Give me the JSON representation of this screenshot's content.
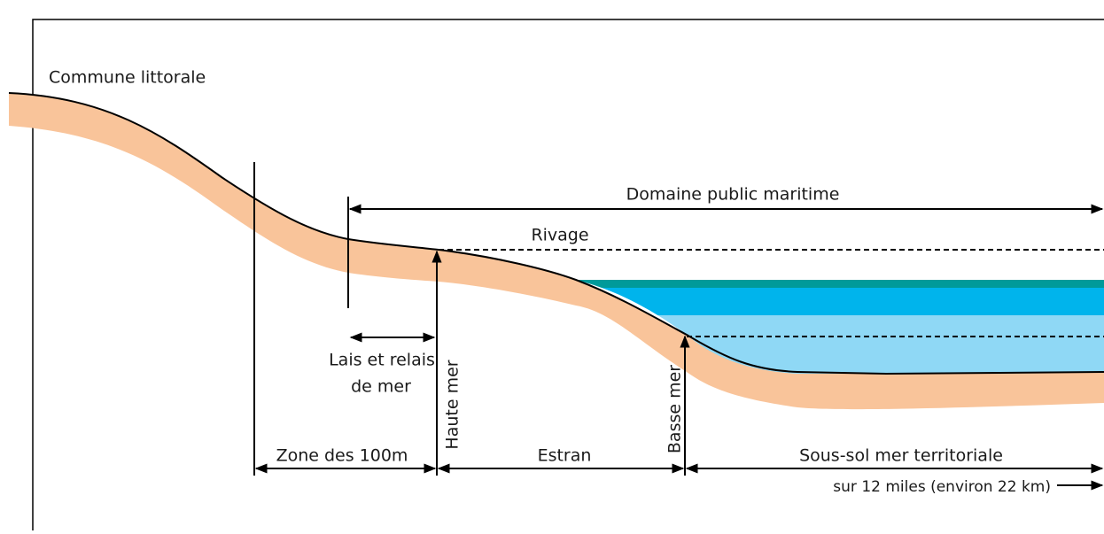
{
  "labels": {
    "commune": "Commune littorale",
    "domaine": "Domaine public maritime",
    "rivage": "Rivage",
    "lais_1": "Lais et relais",
    "lais_2": "de mer",
    "haute_mer": "Haute mer",
    "basse_mer": "Basse mer",
    "zone": "Zone des 100m",
    "estran": "Estran",
    "sous_sol": "Sous-sol mer territoriale",
    "miles": "sur 12 miles (environ 22 km)"
  }
}
